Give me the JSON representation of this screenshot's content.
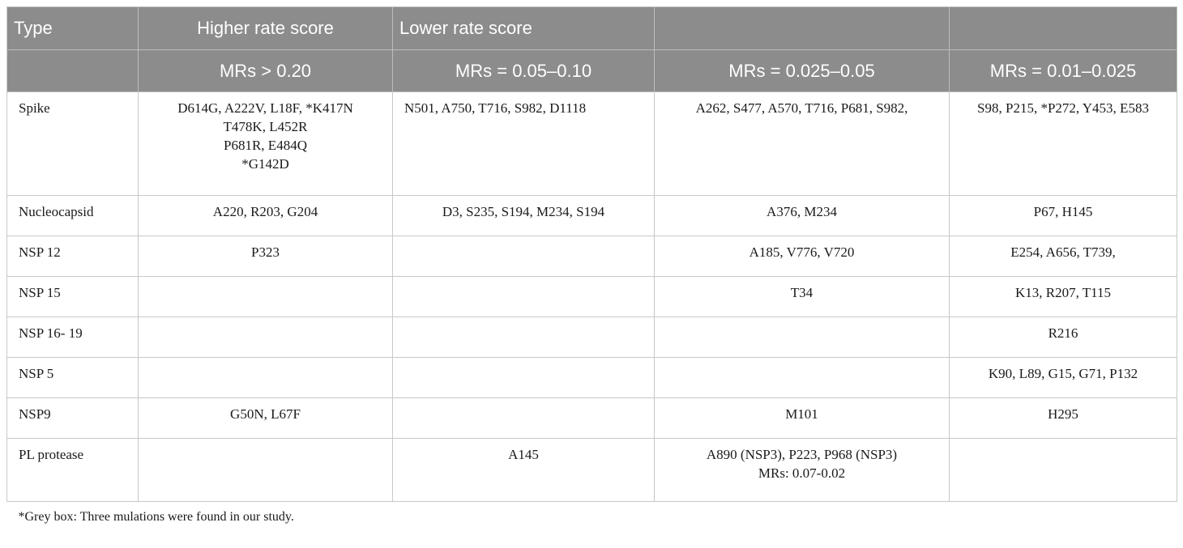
{
  "header": {
    "row1": [
      "Type",
      "Higher rate score",
      "Lower rate score",
      "",
      ""
    ],
    "row2": [
      "",
      "MRs > 0.20",
      "MRs = 0.05–0.10",
      "MRs = 0.025–0.05",
      "MRs = 0.01–0.025"
    ]
  },
  "rows": [
    {
      "type": "Spike",
      "higher": [
        "D614G, A222V, L18F, *K417N",
        "T478K, L452R",
        "P681R, E484Q",
        "*G142D"
      ],
      "lower": [
        "N501, A750, T716, S982, D1118"
      ],
      "mid": [
        "A262, S477, A570, T716, P681, S982,"
      ],
      "low": [
        "S98, P215, *P272, Y453, E583"
      ]
    },
    {
      "type": "Nucleocapsid",
      "higher": [
        "A220, R203, G204"
      ],
      "lower": [
        "D3, S235, S194, M234, S194"
      ],
      "mid": [
        "A376, M234"
      ],
      "low": [
        "P67, H145"
      ]
    },
    {
      "type": "NSP 12",
      "higher": [
        "P323"
      ],
      "lower": [],
      "mid": [
        "A185, V776, V720"
      ],
      "low": [
        "E254, A656, T739,"
      ]
    },
    {
      "type": "NSP 15",
      "higher": [],
      "lower": [],
      "mid": [
        "T34"
      ],
      "low": [
        "K13, R207, T115"
      ]
    },
    {
      "type": "NSP 16- 19",
      "higher": [],
      "lower": [],
      "mid": [],
      "low": [
        "R216"
      ]
    },
    {
      "type": "NSP 5",
      "higher": [],
      "lower": [],
      "mid": [],
      "low": [
        "K90, L89, G15, G71, P132"
      ]
    },
    {
      "type": "NSP9",
      "higher": [
        "G50N, L67F"
      ],
      "lower": [],
      "mid": [
        "M101"
      ],
      "low": [
        "H295"
      ]
    },
    {
      "type": "PL protease",
      "higher": [],
      "lower": [
        "A145"
      ],
      "mid": [
        "A890 (NSP3), P223, P968 (NSP3)",
        "MRs: 0.07-0.02"
      ],
      "low": []
    }
  ],
  "footnote": "*Grey box: Three mulations were found in our study."
}
